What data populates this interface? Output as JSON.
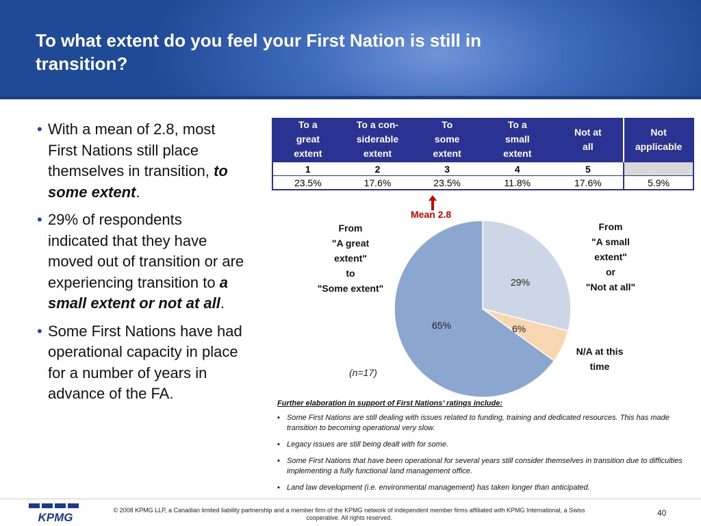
{
  "slide": {
    "title": "To what extent do you feel your First Nation is still in transition?"
  },
  "bullets": [
    {
      "pre": "With a mean of 2.8, most First Nations still place themselves in transition, ",
      "em": "to some extent",
      "post": "."
    },
    {
      "pre": "29% of respondents indicated that they have moved out of transition or are experiencing transition to ",
      "em": "a small extent or not at all",
      "post": "."
    },
    {
      "pre": "Some First Nations have had operational capacity in place for a number of years in advance of the FA.",
      "em": "",
      "post": ""
    }
  ],
  "scale_table": {
    "headers": [
      [
        "To a",
        "great",
        "extent"
      ],
      [
        "To a con-",
        "siderable",
        "extent"
      ],
      [
        "To",
        "some",
        "extent"
      ],
      [
        "To a",
        "small",
        "extent"
      ],
      [
        "Not at",
        "all"
      ],
      [
        "Not",
        "applicable"
      ]
    ],
    "codes": [
      "1",
      "2",
      "3",
      "4",
      "5",
      ""
    ],
    "percentages": [
      "23.5%",
      "17.6%",
      "23.5%",
      "11.8%",
      "17.6%",
      "5.9%"
    ],
    "mean_label": "Mean 2.8",
    "mean_color": "#d10000"
  },
  "chart_data": {
    "type": "pie",
    "n_label": "(n=17)",
    "slices": [
      {
        "value": 29,
        "pct_label": "29%",
        "color": "#ccd6e6",
        "label": [
          "From",
          "\"A small",
          "extent\"",
          "or",
          "\"Not at all\""
        ]
      },
      {
        "value": 6,
        "pct_label": "6%",
        "color": "#f8d7b0",
        "label": [
          "N/A at this",
          "time"
        ]
      },
      {
        "value": 65,
        "pct_label": "65%",
        "color": "#8ba6cf",
        "label": [
          "From",
          "\"A great",
          "extent\"",
          "to",
          "\"Some extent\""
        ]
      }
    ]
  },
  "notes": {
    "heading": "Further elaboration in support of First Nations’ ratings include:",
    "items": [
      "Some First Nations are still dealing with issues related to funding, training and dedicated resources. This has made transition to becoming operational very slow.",
      "Legacy issues are still being dealt with for some.",
      "Some First Nations that have been operational for several years still consider themselves in transition due to difficulties implementing a fully functional land management office.",
      "Land law development (i.e. environmental management) has taken longer than anticipated."
    ]
  },
  "footer": {
    "logo_text": "KPMG",
    "copyright": "© 2008 KPMG LLP, a Canadian limited liability partnership and a member firm of the KPMG network of independent member firms affiliated with KPMG International, a Swiss cooperative. All rights reserved.",
    "page_number": "40"
  }
}
